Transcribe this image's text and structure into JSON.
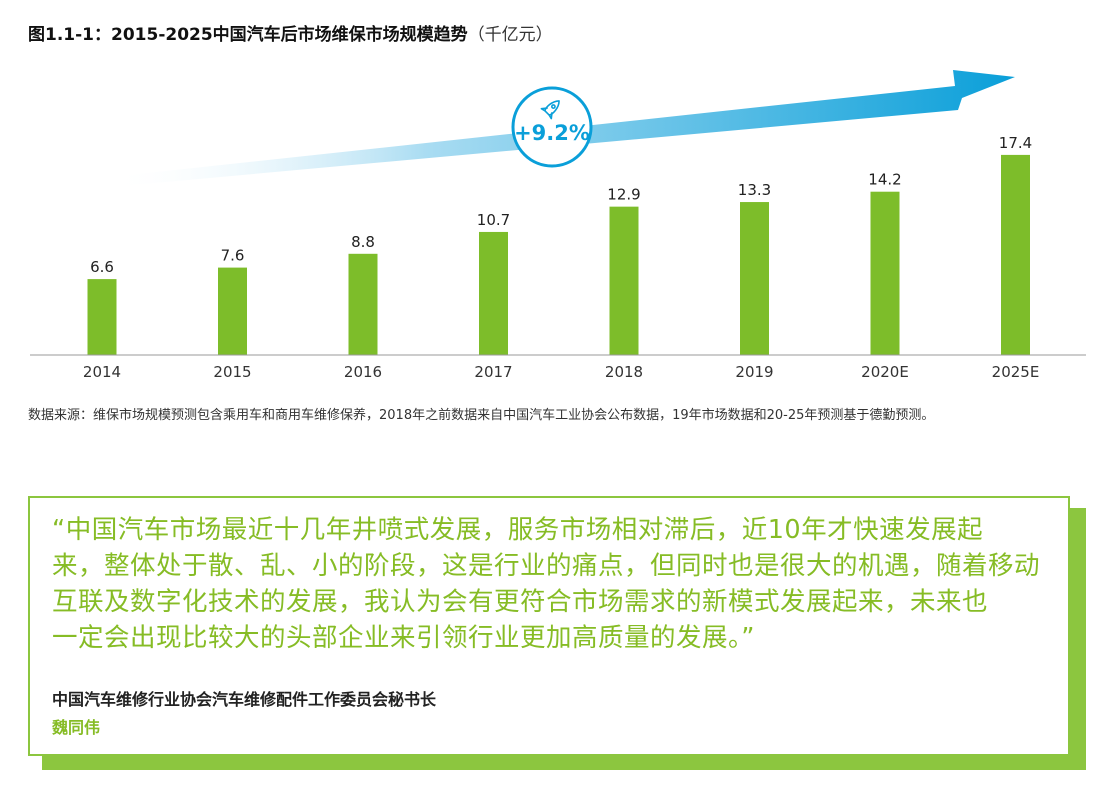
{
  "title": {
    "main": "图1.1-1：2015-2025中国汽车后市场维保市场规模趋势",
    "unit": "（千亿元）"
  },
  "chart_data": {
    "type": "bar",
    "categories": [
      "2014",
      "2015",
      "2016",
      "2017",
      "2018",
      "2019",
      "2020E",
      "2025E"
    ],
    "values": [
      6.6,
      7.6,
      8.8,
      10.7,
      12.9,
      13.3,
      14.2,
      17.4
    ],
    "value_labels": [
      "6.6",
      "7.6",
      "8.8",
      "10.7",
      "12.9",
      "13.3",
      "14.2",
      "17.4"
    ],
    "growth_label": "+9.2%",
    "growth_icon": "rocket-icon",
    "ylim": [
      0,
      18
    ],
    "grid": false,
    "colors": {
      "bar": "#7dbd2a",
      "arrow_start": "#ffffff",
      "arrow_end": "#0a9fd9",
      "badge_text": "#0a9fd9"
    }
  },
  "source": "数据来源：维保市场规模预测包含乘用车和商用车维修保养，2018年之前数据来自中国汽车工业协会公布数据，19年市场数据和20-25年预测基于德勤预测。",
  "quote": {
    "lines": [
      "“中国汽车市场最近十几年井喷式发展，服务市场相对滞后，近10年才快速发展起",
      "来，整体处于散、乱、小的阶段，这是行业的痛点，但同时也是很大的机遇，随着移动",
      "互联及数字化技术的发展，我认为会有更符合市场需求的新模式发展起来，未来也",
      "一定会出现比较大的头部企业来引领行业更加高质量的发展。”"
    ],
    "author_role": "中国汽车维修行业协会汽车维修配件工作委员会秘书长",
    "author_name": "魏同伟",
    "colors": {
      "accent": "#86bc25"
    }
  }
}
